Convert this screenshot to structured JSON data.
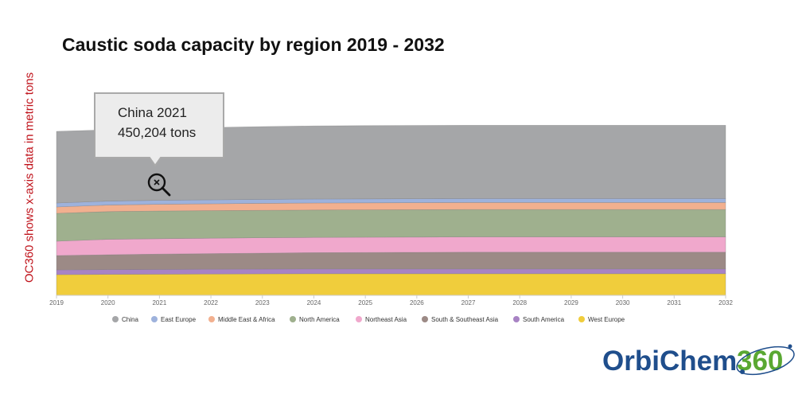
{
  "page": {
    "title": "Caustic soda capacity by region 2019 - 2032",
    "side_note": "OC360 shows x-axis data in metric tons"
  },
  "tooltip": {
    "line1": "China 2021",
    "line2": "450,204 tons",
    "icon": "zoom-out-magnifier-icon"
  },
  "logo": {
    "text_main": "OrbiChem",
    "text_accent": "360",
    "colors": {
      "main": "#1f4e8c",
      "accent": "#5aa832"
    }
  },
  "chart_data": {
    "type": "area",
    "stacked": true,
    "x": [
      "2019",
      "2020",
      "2021",
      "2022",
      "2023",
      "2024",
      "2025",
      "2026",
      "2027",
      "2028",
      "2029",
      "2030",
      "2031",
      "2032"
    ],
    "y_axis_visible": false,
    "ylim": [
      0,
      1130
    ],
    "grid": false,
    "legend_position": "bottom",
    "series": [
      {
        "name": "West Europe",
        "color": "#f0cd3c",
        "values": [
          130,
          132,
          133,
          134,
          135,
          136,
          136,
          136,
          136,
          136,
          136,
          136,
          136,
          136
        ]
      },
      {
        "name": "South America",
        "color": "#a883c4",
        "values": [
          30,
          30,
          30,
          30,
          30,
          30,
          30,
          30,
          30,
          30,
          30,
          30,
          30,
          30
        ]
      },
      {
        "name": "South & Southeast Asia",
        "color": "#9c8a86",
        "values": [
          90,
          93,
          96,
          98,
          100,
          102,
          103,
          104,
          105,
          105,
          105,
          105,
          105,
          105
        ]
      },
      {
        "name": "Northeast Asia",
        "color": "#f0a8cc",
        "values": [
          90,
          97,
          97,
          97,
          97,
          96,
          96,
          96,
          96,
          96,
          96,
          96,
          96,
          96
        ]
      },
      {
        "name": "North America",
        "color": "#9fb08e",
        "values": [
          175,
          174,
          174,
          173,
          172,
          172,
          172,
          172,
          172,
          172,
          172,
          172,
          172,
          172
        ]
      },
      {
        "name": "Middle East & Africa",
        "color": "#f2b08f",
        "values": [
          40,
          41,
          42,
          43,
          44,
          44,
          44,
          44,
          44,
          44,
          44,
          44,
          44,
          44
        ]
      },
      {
        "name": "East Europe",
        "color": "#9eb2dc",
        "values": [
          25,
          25,
          25,
          25,
          25,
          25,
          25,
          25,
          25,
          25,
          25,
          25,
          25,
          25
        ]
      },
      {
        "name": "China",
        "color": "#a5a6a8",
        "values": [
          450,
          448,
          450,
          454,
          457,
          459,
          460,
          460,
          460,
          460,
          460,
          460,
          460,
          460
        ]
      }
    ],
    "legend_order": [
      "China",
      "East Europe",
      "Middle East & Africa",
      "North America",
      "Northeast Asia",
      "South & Southeast Asia",
      "South America",
      "West Europe"
    ]
  }
}
